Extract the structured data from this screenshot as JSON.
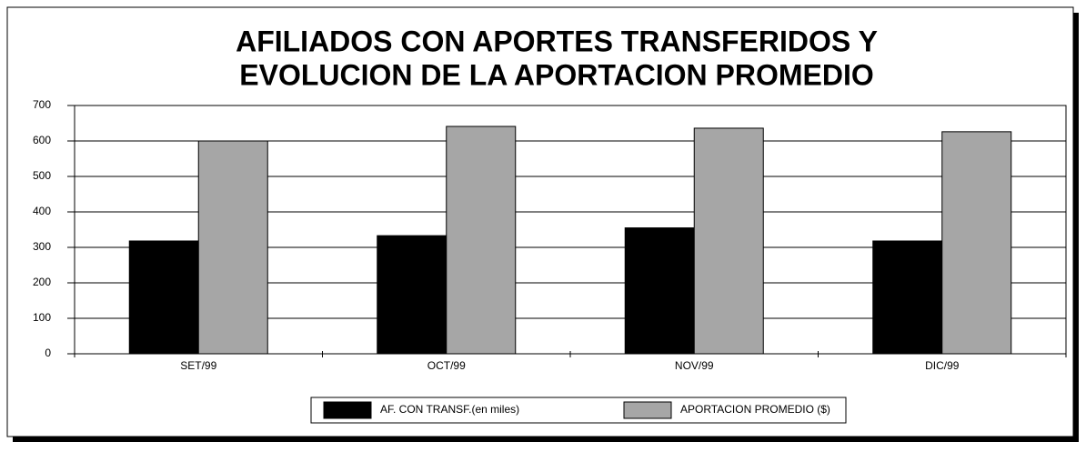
{
  "chart_data": {
    "type": "bar",
    "title": [
      "AFILIADOS CON APORTES TRANSFERIDOS Y",
      "EVOLUCION DE LA APORTACION PROMEDIO"
    ],
    "categories": [
      "SET/99",
      "OCT/99",
      "NOV/99",
      "DIC/99"
    ],
    "series": [
      {
        "name": "AF. CON TRANSF.(en miles)",
        "color": "#000000",
        "values": [
          318,
          333,
          355,
          318
        ]
      },
      {
        "name": "APORTACION PROMEDIO ($)",
        "color": "#a6a6a6",
        "values": [
          600,
          641,
          636,
          626
        ]
      }
    ],
    "ylim": [
      0,
      700
    ],
    "yticks": [
      0,
      100,
      200,
      300,
      400,
      500,
      600,
      700
    ],
    "grid": true,
    "legend": "bottom"
  }
}
